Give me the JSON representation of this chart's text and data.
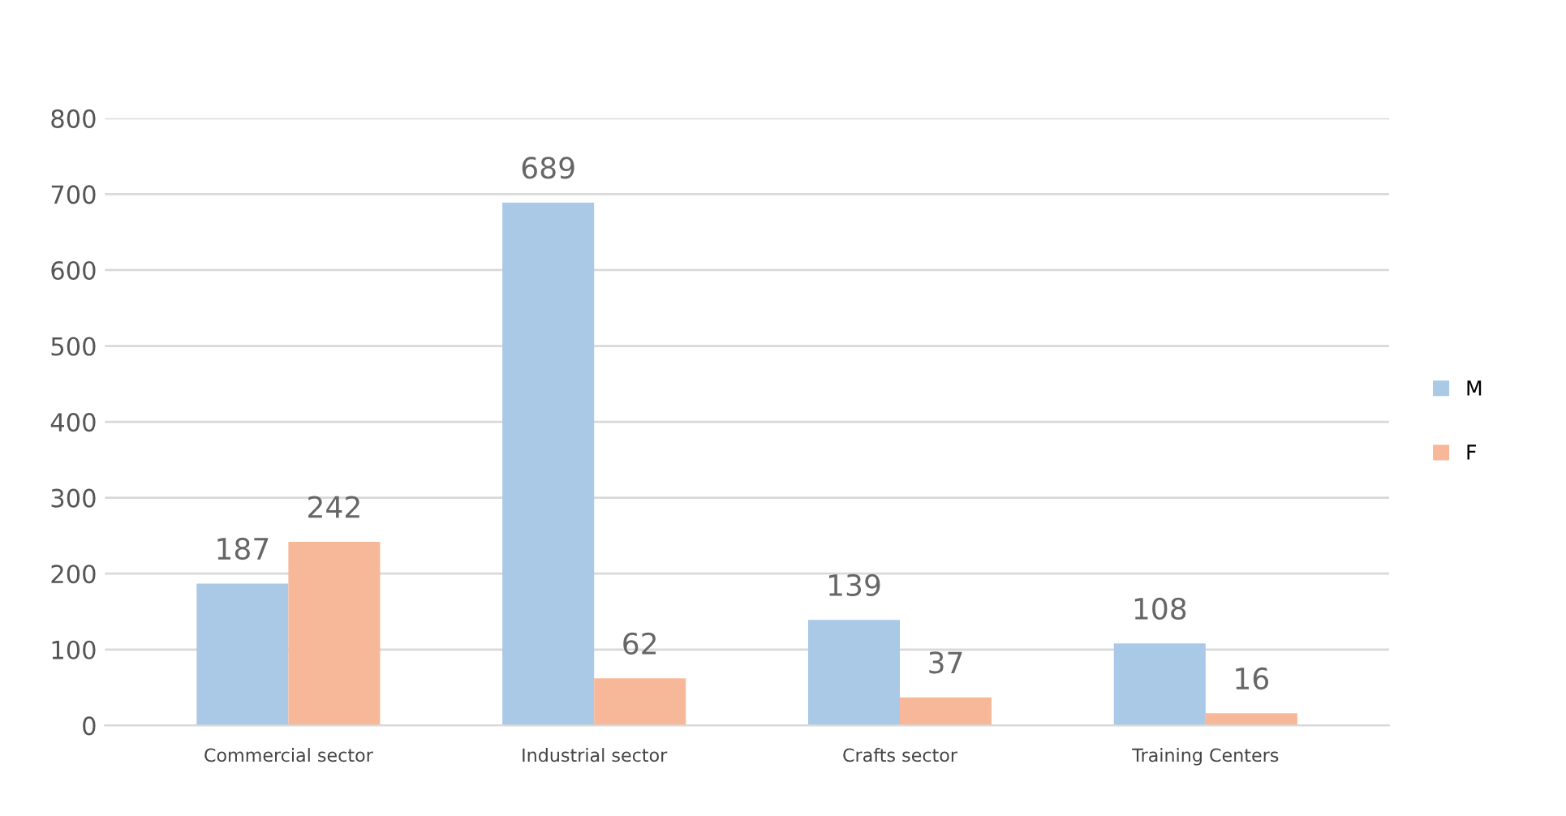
{
  "chart_data": {
    "type": "bar",
    "categories": [
      "Commercial sector",
      "Industrial sector",
      "Crafts sector",
      "Training Centers"
    ],
    "series": [
      {
        "name": "M",
        "color": "#a9c9e6",
        "values": [
          187,
          689,
          139,
          108
        ]
      },
      {
        "name": "F",
        "color": "#f7b899",
        "values": [
          242,
          62,
          37,
          16
        ]
      }
    ],
    "ylim": [
      0,
      800
    ],
    "yticks": [
      0,
      100,
      200,
      300,
      400,
      500,
      600,
      700,
      800
    ],
    "grid": "y",
    "legend": "right",
    "data_labels": true
  }
}
